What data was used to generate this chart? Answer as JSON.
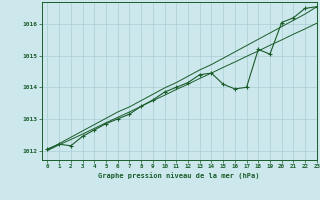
{
  "background_color": "#cce8ec",
  "grid_color": "#aacdd4",
  "line_color": "#1a5c2a",
  "title": "Graphe pression niveau de la mer (hPa)",
  "xlim": [
    -0.5,
    23
  ],
  "ylim": [
    1011.7,
    1016.7
  ],
  "yticks": [
    1012,
    1013,
    1014,
    1015,
    1016
  ],
  "xticks": [
    0,
    1,
    2,
    3,
    4,
    5,
    6,
    7,
    8,
    9,
    10,
    11,
    12,
    13,
    14,
    15,
    16,
    17,
    18,
    19,
    20,
    21,
    22,
    23
  ],
  "hours": [
    0,
    1,
    2,
    3,
    4,
    5,
    6,
    7,
    8,
    9,
    10,
    11,
    12,
    13,
    14,
    15,
    16,
    17,
    18,
    19,
    20,
    21,
    22,
    23
  ],
  "pressure_main": [
    1012.05,
    1012.2,
    1012.15,
    1012.45,
    1012.65,
    1012.85,
    1013.0,
    1013.15,
    1013.4,
    1013.6,
    1013.85,
    1014.0,
    1014.15,
    1014.4,
    1014.45,
    1014.1,
    1013.95,
    1014.0,
    1015.2,
    1015.05,
    1016.05,
    1016.2,
    1016.5,
    1016.55
  ],
  "pressure_line1": [
    1012.0,
    1012.18,
    1012.35,
    1012.52,
    1012.7,
    1012.88,
    1013.05,
    1013.22,
    1013.4,
    1013.58,
    1013.75,
    1013.93,
    1014.1,
    1014.28,
    1014.45,
    1014.63,
    1014.8,
    1014.98,
    1015.15,
    1015.33,
    1015.5,
    1015.68,
    1015.85,
    1016.03
  ],
  "pressure_line2": [
    1012.02,
    1012.22,
    1012.42,
    1012.62,
    1012.82,
    1013.02,
    1013.22,
    1013.38,
    1013.58,
    1013.78,
    1013.98,
    1014.15,
    1014.35,
    1014.55,
    1014.72,
    1014.92,
    1015.12,
    1015.32,
    1015.52,
    1015.72,
    1015.92,
    1016.12,
    1016.32,
    1016.55
  ]
}
